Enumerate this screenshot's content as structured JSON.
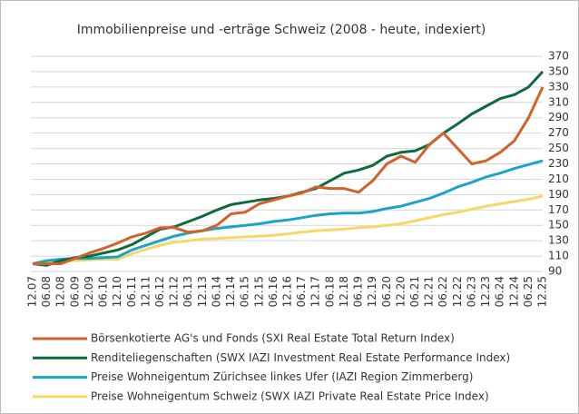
{
  "chart_data": {
    "type": "line",
    "title": "Immobilienpreise und -erträge Schweiz (2008 - heute, indexiert)",
    "categories": [
      "12.07",
      "06.08",
      "12.08",
      "06.09",
      "12.09",
      "06.10",
      "12.10",
      "06.11",
      "12.11",
      "06.12",
      "12.12",
      "06.13",
      "12.13",
      "06.14",
      "12.14",
      "06.15",
      "12.15",
      "06.16",
      "12.16",
      "06.17",
      "12.17",
      "06.18",
      "12.18",
      "06.19",
      "12.19",
      "06.20",
      "12.20",
      "06.21",
      "12.21",
      "06.22",
      "12.22",
      "06.23",
      "12.23",
      "06.24",
      "12.24",
      "06.25",
      "12.25"
    ],
    "series": [
      {
        "name": "Börsenkotierte AG's und Fonds (SXI Real Estate Total Return Index)",
        "color": "#d2622b",
        "values": [
          100,
          100,
          100,
          107,
          114,
          120,
          127,
          135,
          140,
          147,
          147,
          141,
          143,
          150,
          165,
          167,
          178,
          183,
          188,
          192,
          200,
          198,
          198,
          193,
          208,
          230,
          240,
          232,
          255,
          270,
          250,
          230,
          234,
          245,
          260,
          290,
          330
        ]
      },
      {
        "name": "Renditeliegenschaften (SWX IAZI Investment Real Estate Performance Index)",
        "color": "#0e6a3a",
        "values": [
          100,
          98,
          104,
          108,
          110,
          114,
          118,
          125,
          135,
          145,
          148,
          155,
          162,
          170,
          177,
          180,
          183,
          185,
          188,
          193,
          198,
          208,
          218,
          222,
          228,
          240,
          245,
          247,
          255,
          270,
          282,
          295,
          305,
          315,
          320,
          330,
          350
        ]
      },
      {
        "name": "Preise Wohneigentum Zürichsee linkes Ufer (IAZI Region Zimmerberg)",
        "color": "#1ba4c3",
        "values": [
          100,
          104,
          106,
          107,
          107,
          108,
          109,
          118,
          124,
          130,
          136,
          140,
          143,
          146,
          148,
          150,
          152,
          155,
          157,
          160,
          163,
          165,
          166,
          166,
          168,
          172,
          175,
          180,
          185,
          192,
          200,
          206,
          213,
          218,
          224,
          229,
          234
        ]
      },
      {
        "name": "Preise Wohneigentum Schweiz (SWX IAZI Private Real Estate Price Index)",
        "color": "#f6d867",
        "values": [
          100,
          103,
          104,
          104,
          105,
          106,
          106,
          113,
          119,
          124,
          128,
          130,
          132,
          133,
          134,
          135,
          136,
          137,
          139,
          141,
          143,
          144,
          145,
          147,
          148,
          150,
          152,
          156,
          160,
          164,
          167,
          171,
          175,
          178,
          181,
          184,
          188
        ]
      }
    ],
    "ylim": [
      90,
      370
    ],
    "yticks": [
      90,
      110,
      130,
      150,
      170,
      190,
      210,
      230,
      250,
      270,
      290,
      310,
      330,
      350,
      370
    ],
    "grid": true
  }
}
